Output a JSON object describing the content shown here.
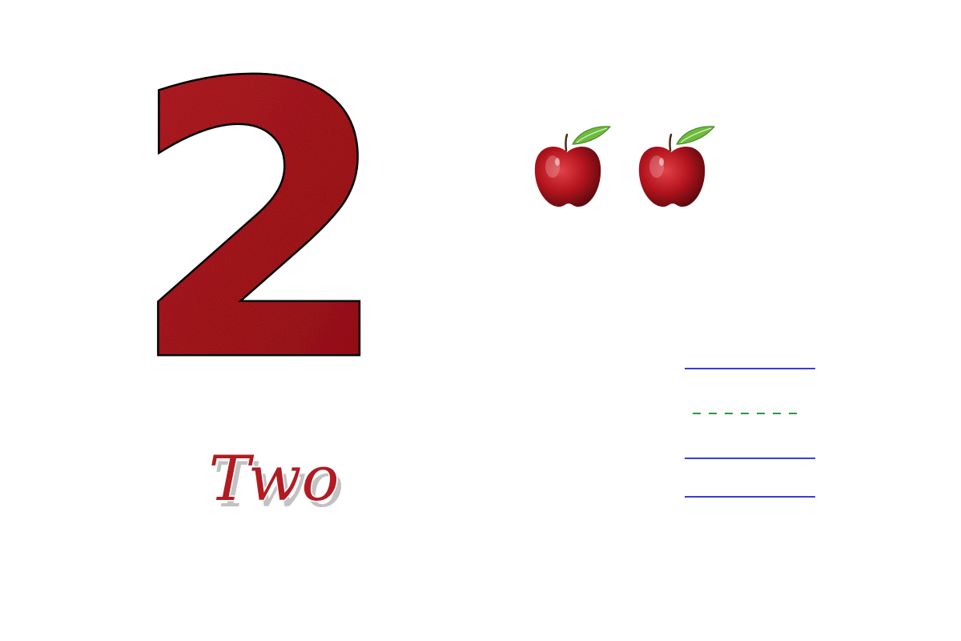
{
  "numeral": {
    "value": "2",
    "color": "#a3151c",
    "highlight_color": "#c9262c",
    "outline_color": "#111111"
  },
  "word": {
    "value": "Two",
    "color": "#b11b22",
    "shadow_color": "#7a7a7a"
  },
  "apples": {
    "count": 2,
    "icon": "apple-icon",
    "body_color": "#b3141d",
    "leaf_color": "#6dbb3c"
  },
  "writing_guide": {
    "solid_line_color": "#3c3cdc",
    "dashed_line_color": "#2d9c2d"
  }
}
